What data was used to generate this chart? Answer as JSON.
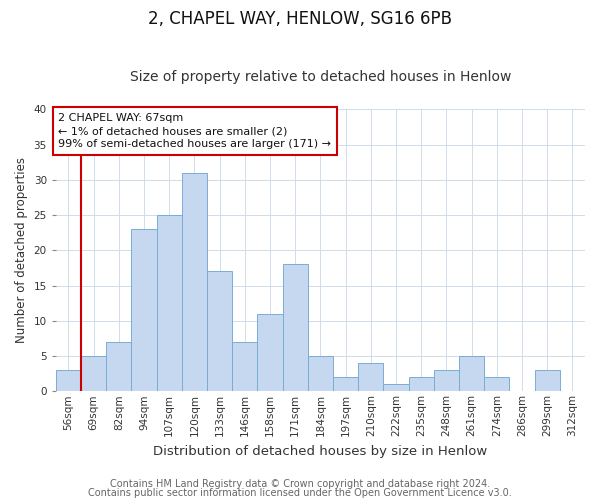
{
  "title": "2, CHAPEL WAY, HENLOW, SG16 6PB",
  "subtitle": "Size of property relative to detached houses in Henlow",
  "xlabel": "Distribution of detached houses by size in Henlow",
  "ylabel": "Number of detached properties",
  "bin_labels": [
    "56sqm",
    "69sqm",
    "82sqm",
    "94sqm",
    "107sqm",
    "120sqm",
    "133sqm",
    "146sqm",
    "158sqm",
    "171sqm",
    "184sqm",
    "197sqm",
    "210sqm",
    "222sqm",
    "235sqm",
    "248sqm",
    "261sqm",
    "274sqm",
    "286sqm",
    "299sqm",
    "312sqm"
  ],
  "bar_heights": [
    3,
    5,
    7,
    23,
    25,
    31,
    17,
    7,
    11,
    18,
    5,
    2,
    4,
    1,
    2,
    3,
    5,
    2,
    0,
    3,
    0
  ],
  "bar_color": "#c5d8f0",
  "bar_edge_color": "#7aadd4",
  "highlight_bar_index": 0,
  "highlight_edge_color": "#cc0000",
  "annotation_box_text": "2 CHAPEL WAY: 67sqm\n← 1% of detached houses are smaller (2)\n99% of semi-detached houses are larger (171) →",
  "annotation_box_edge_color": "#cc0000",
  "annotation_box_facecolor": "#ffffff",
  "footnote1": "Contains HM Land Registry data © Crown copyright and database right 2024.",
  "footnote2": "Contains public sector information licensed under the Open Government Licence v3.0.",
  "ylim": [
    0,
    40
  ],
  "yticks": [
    0,
    5,
    10,
    15,
    20,
    25,
    30,
    35,
    40
  ],
  "background_color": "#ffffff",
  "grid_color": "#d0dcea",
  "title_fontsize": 12,
  "subtitle_fontsize": 10,
  "xlabel_fontsize": 9.5,
  "ylabel_fontsize": 8.5,
  "tick_fontsize": 7.5,
  "footnote_fontsize": 7
}
